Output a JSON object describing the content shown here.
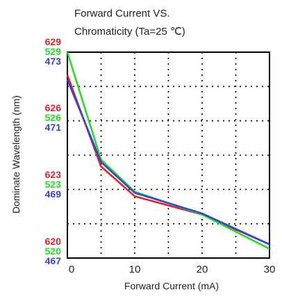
{
  "chart_data": {
    "type": "line",
    "title_line1": "Forward Current VS.",
    "title_line2": "Chromaticity (Ta=25 ℃)",
    "xlabel": "Forward Current (mA)",
    "ylabel": "Dominate Wavelength (nm)",
    "xlim": [
      0,
      30
    ],
    "x_ticks": [
      "0",
      "10",
      "20",
      "30"
    ],
    "grid": true,
    "y_tick_groups": [
      {
        "red": "629",
        "green": "529",
        "blue": "473"
      },
      {
        "red": "626",
        "green": "526",
        "blue": "471"
      },
      {
        "red": "623",
        "green": "523",
        "blue": "469"
      },
      {
        "red": "620",
        "green": "520",
        "blue": "467"
      }
    ],
    "colors": {
      "red": "#e8202a",
      "green": "#22dd22",
      "blue": "#3344dd",
      "grid": "#000000",
      "frame": "#000000"
    },
    "series": [
      {
        "name": "red",
        "x": [
          0,
          5,
          10,
          20,
          30
        ],
        "y": [
          628.0,
          624.0,
          622.7,
          621.9,
          620.6
        ]
      },
      {
        "name": "green",
        "x": [
          0,
          5,
          10,
          20,
          30
        ],
        "y": [
          529.0,
          524.3,
          522.9,
          521.9,
          520.4
        ]
      },
      {
        "name": "blue",
        "x": [
          0,
          5,
          10,
          20,
          30
        ],
        "y": [
          472.2,
          469.8,
          468.9,
          468.3,
          467.4
        ]
      }
    ],
    "y_axes": {
      "red": [
        620,
        629
      ],
      "green": [
        520,
        529
      ],
      "blue": [
        467,
        473
      ]
    }
  }
}
